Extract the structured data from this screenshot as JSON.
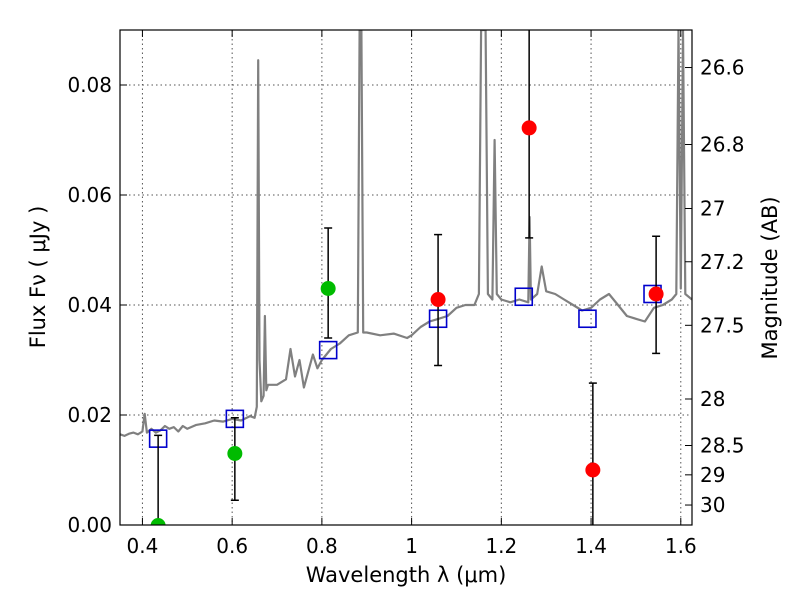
{
  "chart_data": {
    "type": "scatter",
    "xlabel": "Wavelength  λ (μm)",
    "ylabel": "Flux  Fν  ( μJy )",
    "y2label": "Magnitude (AB)",
    "xlim": [
      0.35,
      1.625
    ],
    "ylim": [
      0.0,
      0.09
    ],
    "xticks": [
      0.4,
      0.6,
      0.8,
      1.0,
      1.2,
      1.4,
      1.6
    ],
    "xtick_labels": [
      "0.4",
      "0.6",
      "0.8",
      "1",
      "1.2",
      "1.4",
      "1.6"
    ],
    "yticks": [
      0.0,
      0.02,
      0.04,
      0.06,
      0.08
    ],
    "ytick_labels": [
      "0.00",
      "0.02",
      "0.04",
      "0.06",
      "0.08"
    ],
    "mag_ticks": [
      26.6,
      26.8,
      27,
      27.2,
      27.5,
      28,
      28.5,
      29,
      30
    ],
    "mag_tick_labels": [
      "26.6",
      "26.8",
      "27",
      "27.2",
      "27.5",
      "28",
      "28.5",
      "29",
      "30"
    ],
    "grid": true,
    "colors": {
      "model": "#808080",
      "model_phot": "#0000cc",
      "detection": "#00bb00",
      "nondetection": "#ff0000",
      "errorbar": "#000000"
    },
    "model_spectrum": [
      [
        0.35,
        0.0165
      ],
      [
        0.36,
        0.0162
      ],
      [
        0.37,
        0.0166
      ],
      [
        0.38,
        0.0168
      ],
      [
        0.39,
        0.0165
      ],
      [
        0.4,
        0.017
      ],
      [
        0.405,
        0.0202
      ],
      [
        0.41,
        0.0168
      ],
      [
        0.42,
        0.0175
      ],
      [
        0.43,
        0.0168
      ],
      [
        0.44,
        0.0172
      ],
      [
        0.45,
        0.018
      ],
      [
        0.46,
        0.0175
      ],
      [
        0.47,
        0.0178
      ],
      [
        0.48,
        0.017
      ],
      [
        0.49,
        0.018
      ],
      [
        0.5,
        0.0175
      ],
      [
        0.52,
        0.0182
      ],
      [
        0.54,
        0.0185
      ],
      [
        0.56,
        0.019
      ],
      [
        0.58,
        0.0188
      ],
      [
        0.6,
        0.0193
      ],
      [
        0.62,
        0.019
      ],
      [
        0.64,
        0.0198
      ],
      [
        0.65,
        0.0195
      ],
      [
        0.655,
        0.0215
      ],
      [
        0.658,
        0.0845
      ],
      [
        0.661,
        0.03
      ],
      [
        0.665,
        0.0225
      ],
      [
        0.67,
        0.0235
      ],
      [
        0.673,
        0.038
      ],
      [
        0.676,
        0.0245
      ],
      [
        0.68,
        0.0255
      ],
      [
        0.7,
        0.0255
      ],
      [
        0.72,
        0.0265
      ],
      [
        0.73,
        0.032
      ],
      [
        0.74,
        0.027
      ],
      [
        0.75,
        0.03
      ],
      [
        0.76,
        0.025
      ],
      [
        0.77,
        0.028
      ],
      [
        0.78,
        0.031
      ],
      [
        0.79,
        0.0285
      ],
      [
        0.8,
        0.03
      ],
      [
        0.82,
        0.032
      ],
      [
        0.84,
        0.033
      ],
      [
        0.86,
        0.0345
      ],
      [
        0.88,
        0.035
      ],
      [
        0.884,
        0.09
      ],
      [
        0.888,
        0.09
      ],
      [
        0.892,
        0.035
      ],
      [
        0.9,
        0.035
      ],
      [
        0.93,
        0.0345
      ],
      [
        0.96,
        0.0348
      ],
      [
        0.99,
        0.034
      ],
      [
        1.0,
        0.0345
      ],
      [
        1.02,
        0.036
      ],
      [
        1.04,
        0.037
      ],
      [
        1.06,
        0.0375
      ],
      [
        1.08,
        0.038
      ],
      [
        1.1,
        0.0395
      ],
      [
        1.12,
        0.04
      ],
      [
        1.14,
        0.04
      ],
      [
        1.15,
        0.042
      ],
      [
        1.155,
        0.09
      ],
      [
        1.165,
        0.09
      ],
      [
        1.17,
        0.042
      ],
      [
        1.18,
        0.041
      ],
      [
        1.185,
        0.07
      ],
      [
        1.19,
        0.042
      ],
      [
        1.2,
        0.041
      ],
      [
        1.22,
        0.0405
      ],
      [
        1.24,
        0.041
      ],
      [
        1.26,
        0.0405
      ],
      [
        1.263,
        0.056
      ],
      [
        1.266,
        0.041
      ],
      [
        1.28,
        0.042
      ],
      [
        1.29,
        0.047
      ],
      [
        1.3,
        0.0425
      ],
      [
        1.32,
        0.042
      ],
      [
        1.34,
        0.041
      ],
      [
        1.36,
        0.04
      ],
      [
        1.38,
        0.039
      ],
      [
        1.4,
        0.0395
      ],
      [
        1.42,
        0.041
      ],
      [
        1.44,
        0.042
      ],
      [
        1.46,
        0.04
      ],
      [
        1.48,
        0.038
      ],
      [
        1.5,
        0.0375
      ],
      [
        1.52,
        0.037
      ],
      [
        1.54,
        0.0395
      ],
      [
        1.56,
        0.04
      ],
      [
        1.58,
        0.041
      ],
      [
        1.59,
        0.042
      ],
      [
        1.595,
        0.09
      ],
      [
        1.6,
        0.043
      ],
      [
        1.605,
        0.09
      ],
      [
        1.61,
        0.042
      ],
      [
        1.625,
        0.041
      ]
    ],
    "model_photometry": [
      {
        "x": 0.435,
        "y": 0.0157
      },
      {
        "x": 0.606,
        "y": 0.0193
      },
      {
        "x": 0.814,
        "y": 0.0318
      },
      {
        "x": 1.059,
        "y": 0.0375
      },
      {
        "x": 1.25,
        "y": 0.0415
      },
      {
        "x": 1.392,
        "y": 0.0375
      },
      {
        "x": 1.537,
        "y": 0.042
      }
    ],
    "observed": [
      {
        "x": 0.435,
        "y": -0.0001,
        "ylo": -0.001,
        "yhi": 0.0163,
        "detected": true
      },
      {
        "x": 0.606,
        "y": 0.013,
        "ylo": 0.0045,
        "yhi": 0.0195,
        "detected": true
      },
      {
        "x": 0.814,
        "y": 0.043,
        "ylo": 0.034,
        "yhi": 0.054,
        "detected": true
      },
      {
        "x": 1.059,
        "y": 0.041,
        "ylo": 0.029,
        "yhi": 0.0528,
        "detected": false
      },
      {
        "x": 1.262,
        "y": 0.0722,
        "ylo": 0.0522,
        "yhi": 0.092,
        "detected": false
      },
      {
        "x": 1.404,
        "y": 0.01,
        "ylo": -0.001,
        "yhi": 0.0258,
        "detected": false
      },
      {
        "x": 1.545,
        "y": 0.042,
        "ylo": 0.0312,
        "yhi": 0.0525,
        "detected": false
      }
    ]
  }
}
